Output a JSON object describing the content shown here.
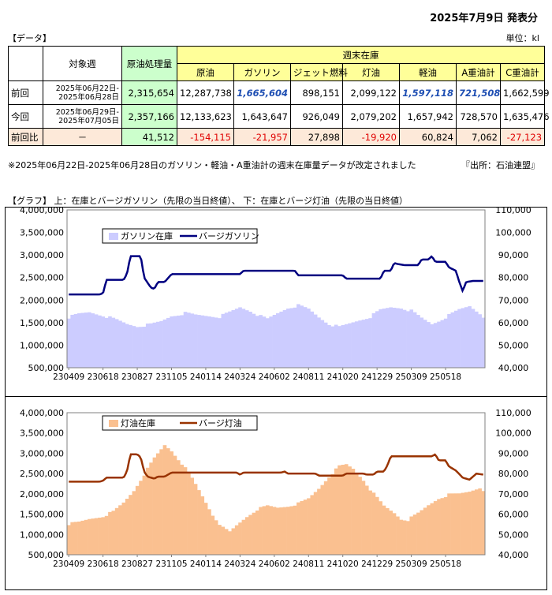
{
  "header": {
    "date_title": "2025年7月9日 発表分",
    "unit": "単位：kl",
    "data_label": "【データ】"
  },
  "table": {
    "h_week": "対象週",
    "h_crude_proc": "原油処理量",
    "h_stock": "週末在庫",
    "cols": [
      "原油",
      "ガソリン",
      "ジェット燃料",
      "灯油",
      "軽油",
      "A重油計",
      "C重油計"
    ],
    "rows": [
      {
        "label": "前回",
        "week1": "2025年06月22日-",
        "week2": "2025年06月28日",
        "proc": "2,315,654",
        "vals": [
          "12,287,738",
          "1,665,604",
          "898,151",
          "2,099,122",
          "1,597,118",
          "721,508",
          "1,662,599"
        ]
      },
      {
        "label": "今回",
        "week1": "2025年06月29日-",
        "week2": "2025年07月05日",
        "proc": "2,357,166",
        "vals": [
          "12,133,623",
          "1,643,647",
          "926,049",
          "2,079,202",
          "1,657,942",
          "728,570",
          "1,635,476"
        ]
      },
      {
        "label": "前回比",
        "week1": "－",
        "week2": "",
        "proc": "41,512",
        "vals": [
          "-154,115",
          "-21,957",
          "27,898",
          "-19,920",
          "60,824",
          "7,062",
          "-27,123"
        ]
      }
    ],
    "revised_cols": [
      1,
      4,
      5
    ]
  },
  "note": "※2025年06月22日-2025年06月28日のガソリン・軽油・A重油計の週末在庫量データが改定されました",
  "source": "『出所：石油連盟』",
  "graph_label": "【グラフ】 上：在庫とバージガソリン（先限の当日終値）、 下：在庫とバージ灯油（先限の当日終値）",
  "colors": {
    "gas_stock": "#ccccff",
    "gas_price": "#000080",
    "ker_stock": "#fac090",
    "ker_price": "#993300"
  },
  "chart_data": [
    {
      "type": "bar+line",
      "legend": [
        "ガソリン在庫",
        "バージガソリン"
      ],
      "x_ticks": [
        "230409",
        "230618",
        "230827",
        "231105",
        "240114",
        "240324",
        "240602",
        "240811",
        "241020",
        "241229",
        "250309",
        "250518"
      ],
      "y_left_ticks": [
        "500,000",
        "1,000,000",
        "1,500,000",
        "2,000,000",
        "2,500,000",
        "3,000,000",
        "3,500,000",
        "4,000,000"
      ],
      "y_right_ticks": [
        "40,000",
        "50,000",
        "60,000",
        "70,000",
        "80,000",
        "90,000",
        "100,000",
        "110,000"
      ],
      "ylim_left": [
        500000,
        4000000
      ],
      "ylim_right": [
        40000,
        110000
      ],
      "stock_keypoints": [
        [
          0,
          1620000
        ],
        [
          3,
          1690000
        ],
        [
          6,
          1730000
        ],
        [
          10,
          1660000
        ],
        [
          14,
          1560000
        ],
        [
          17,
          1470000
        ],
        [
          20,
          1420000
        ],
        [
          24,
          1460000
        ],
        [
          27,
          1530000
        ],
        [
          30,
          1650000
        ],
        [
          34,
          1710000
        ],
        [
          37,
          1670000
        ],
        [
          41,
          1650000
        ],
        [
          44,
          1630000
        ],
        [
          47,
          1730000
        ],
        [
          50,
          1840000
        ],
        [
          53,
          1760000
        ],
        [
          56,
          1640000
        ],
        [
          58,
          1580000
        ],
        [
          61,
          1710000
        ],
        [
          64,
          1830000
        ],
        [
          67,
          1880000
        ],
        [
          70,
          1800000
        ],
        [
          73,
          1620000
        ],
        [
          76,
          1470000
        ],
        [
          79,
          1400000
        ],
        [
          82,
          1480000
        ],
        [
          85,
          1560000
        ],
        [
          88,
          1630000
        ],
        [
          91,
          1780000
        ],
        [
          94,
          1840000
        ],
        [
          97,
          1830000
        ],
        [
          100,
          1760000
        ],
        [
          103,
          1600000
        ],
        [
          106,
          1470000
        ],
        [
          108,
          1540000
        ],
        [
          111,
          1660000
        ],
        [
          114,
          1790000
        ],
        [
          117,
          1870000
        ],
        [
          120,
          1710000
        ],
        [
          121,
          1640000
        ]
      ],
      "price_keypoints": [
        [
          0,
          72500
        ],
        [
          9,
          72500
        ],
        [
          10,
          73000
        ],
        [
          11,
          79000
        ],
        [
          16,
          79000
        ],
        [
          17,
          81500
        ],
        [
          18,
          89500
        ],
        [
          21,
          89500
        ],
        [
          22,
          80000
        ],
        [
          24,
          75500
        ],
        [
          25,
          75000
        ],
        [
          26,
          78000
        ],
        [
          28,
          78000
        ],
        [
          30,
          81500
        ],
        [
          35,
          81500
        ],
        [
          36,
          81500
        ],
        [
          50,
          81500
        ],
        [
          51,
          83000
        ],
        [
          66,
          83000
        ],
        [
          67,
          81000
        ],
        [
          80,
          81000
        ],
        [
          81,
          79500
        ],
        [
          91,
          79500
        ],
        [
          92,
          83000
        ],
        [
          94,
          83000
        ],
        [
          95,
          86500
        ],
        [
          96,
          86000
        ],
        [
          98,
          85500
        ],
        [
          102,
          85500
        ],
        [
          103,
          88000
        ],
        [
          105,
          88000
        ],
        [
          106,
          89500
        ],
        [
          107,
          87000
        ],
        [
          110,
          87000
        ],
        [
          111,
          84500
        ],
        [
          113,
          83000
        ],
        [
          114,
          78000
        ],
        [
          115,
          74000
        ],
        [
          116,
          78000
        ],
        [
          118,
          78500
        ],
        [
          121,
          78500
        ]
      ]
    },
    {
      "type": "bar+line",
      "legend": [
        "灯油在庫",
        "バージ灯油"
      ],
      "x_ticks": [
        "230409",
        "230618",
        "230827",
        "231105",
        "240114",
        "240324",
        "240602",
        "240811",
        "241020",
        "241229",
        "250309",
        "250518"
      ],
      "y_left_ticks": [
        "500,000",
        "1,000,000",
        "1,500,000",
        "2,000,000",
        "2,500,000",
        "3,000,000",
        "3,500,000",
        "4,000,000"
      ],
      "y_right_ticks": [
        "40,000",
        "50,000",
        "60,000",
        "70,000",
        "80,000",
        "90,000",
        "100,000",
        "110,000"
      ],
      "ylim_left": [
        500000,
        4000000
      ],
      "ylim_right": [
        40000,
        110000
      ],
      "stock_keypoints": [
        [
          0,
          1260000
        ],
        [
          3,
          1300000
        ],
        [
          6,
          1380000
        ],
        [
          10,
          1450000
        ],
        [
          13,
          1560000
        ],
        [
          16,
          1780000
        ],
        [
          19,
          2080000
        ],
        [
          22,
          2480000
        ],
        [
          25,
          2880000
        ],
        [
          28,
          3200000
        ],
        [
          30,
          3060000
        ],
        [
          33,
          2750000
        ],
        [
          36,
          2380000
        ],
        [
          39,
          1940000
        ],
        [
          42,
          1480000
        ],
        [
          45,
          1160000
        ],
        [
          47,
          1060000
        ],
        [
          49,
          1220000
        ],
        [
          52,
          1440000
        ],
        [
          55,
          1620000
        ],
        [
          58,
          1700000
        ],
        [
          61,
          1660000
        ],
        [
          64,
          1700000
        ],
        [
          67,
          1760000
        ],
        [
          70,
          1880000
        ],
        [
          73,
          2130000
        ],
        [
          76,
          2430000
        ],
        [
          79,
          2680000
        ],
        [
          81,
          2720000
        ],
        [
          83,
          2620000
        ],
        [
          86,
          2340000
        ],
        [
          89,
          2000000
        ],
        [
          92,
          1700000
        ],
        [
          95,
          1530000
        ],
        [
          97,
          1380000
        ],
        [
          99,
          1360000
        ],
        [
          102,
          1520000
        ],
        [
          105,
          1720000
        ],
        [
          108,
          1890000
        ],
        [
          111,
          1980000
        ],
        [
          114,
          2000000
        ],
        [
          117,
          2060000
        ],
        [
          120,
          2160000
        ],
        [
          121,
          2100000
        ]
      ]
    }
  ]
}
